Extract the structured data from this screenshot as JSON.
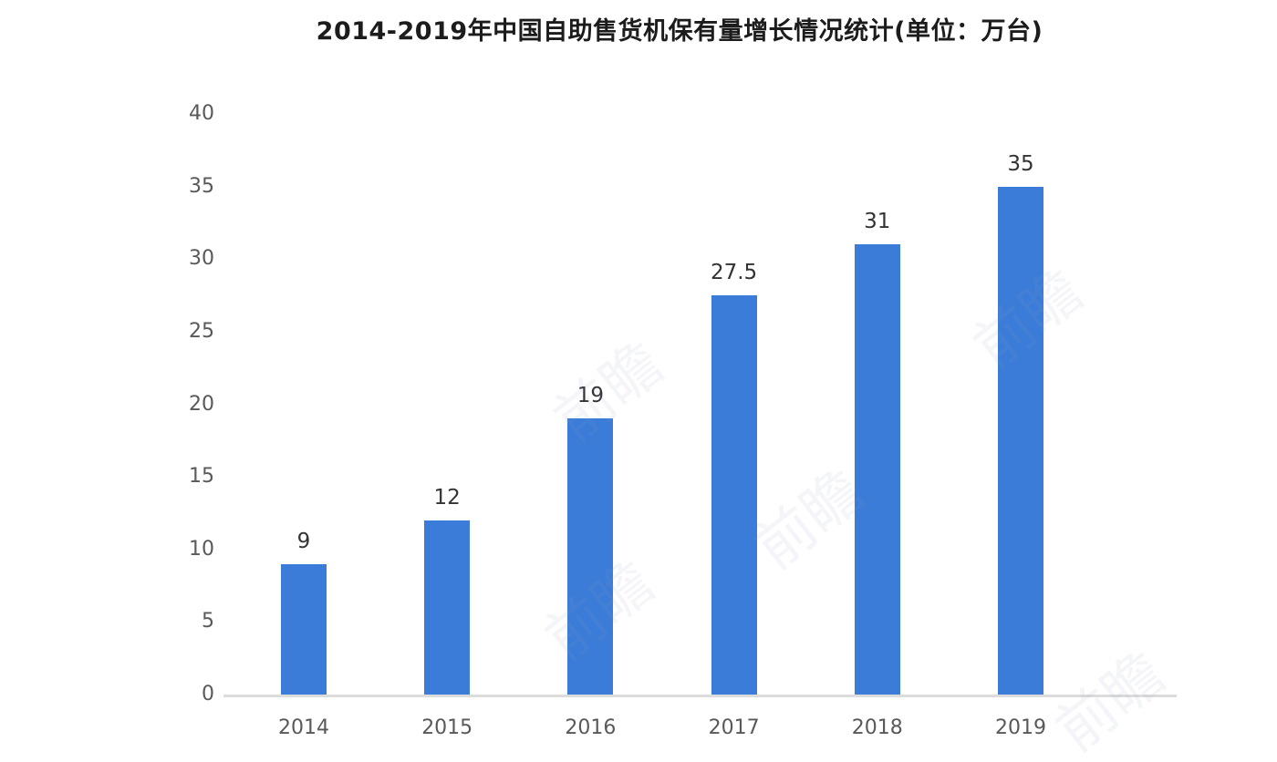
{
  "chart_data": {
    "type": "bar",
    "title": "2014-2019年中国自助售货机保有量增长情况统计(单位：万台)",
    "categories": [
      "2014",
      "2015",
      "2016",
      "2017",
      "2018",
      "2019"
    ],
    "values": [
      9,
      12,
      19,
      27.5,
      31,
      35
    ],
    "value_labels": [
      "9",
      "12",
      "19",
      "27.5",
      "31",
      "35"
    ],
    "xlabel": "",
    "ylabel": "",
    "ylim": [
      0,
      40
    ],
    "yticks": [
      0,
      5,
      10,
      15,
      20,
      25,
      30,
      35,
      40
    ],
    "grid": false,
    "legend": "none",
    "bar_color": "#3a7cd8",
    "axis_line_color": "#dcdcdc",
    "tick_label_color": "#595959",
    "value_label_color": "#333333",
    "title_color": "#1c1c1c"
  },
  "watermark": {
    "text": "前瞻"
  }
}
